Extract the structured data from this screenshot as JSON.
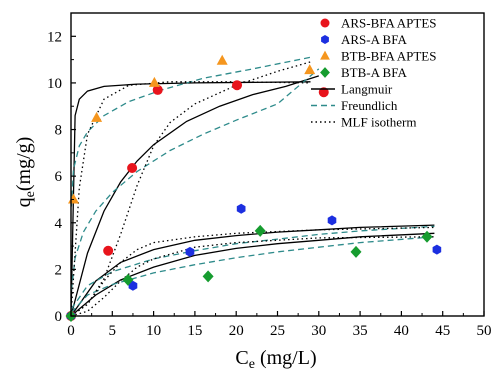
{
  "chart_data": {
    "type": "scatter",
    "title": "",
    "xlabel": "C",
    "xlabel_sub": "e",
    "xlabel_unit": " (mg/L)",
    "ylabel": "q",
    "ylabel_sub": "e",
    "ylabel_unit": "(mg/g)",
    "xlim": [
      0,
      50
    ],
    "ylim": [
      0,
      13
    ],
    "xticks": [
      "0",
      "5",
      "10",
      "15",
      "20",
      "25",
      "30",
      "35",
      "40",
      "45",
      "50"
    ],
    "yticks": [
      "0",
      "2",
      "4",
      "6",
      "8",
      "10",
      "12"
    ],
    "grid": false,
    "legend_position": "top-right",
    "series": [
      {
        "name": "ARS-BFA APTES",
        "marker": "circle",
        "color": "#e8141c",
        "points": [
          [
            0,
            0
          ],
          [
            4.5,
            2.8
          ],
          [
            7.4,
            6.35
          ],
          [
            10.5,
            9.7
          ],
          [
            20.1,
            9.9
          ],
          [
            30.6,
            9.6
          ]
        ]
      },
      {
        "name": "ARS-A BFA",
        "marker": "hexagon",
        "color": "#1c2fe0",
        "points": [
          [
            0,
            0
          ],
          [
            7.5,
            1.3
          ],
          [
            14.4,
            2.75
          ],
          [
            20.6,
            4.6
          ],
          [
            31.6,
            4.1
          ],
          [
            44.3,
            2.85
          ]
        ]
      },
      {
        "name": "BTB-BFA APTES",
        "marker": "triangle",
        "color": "#f5961e",
        "points": [
          [
            0.3,
            5.0
          ],
          [
            3.1,
            8.5
          ],
          [
            10.1,
            10.0
          ],
          [
            18.3,
            10.95
          ],
          [
            28.9,
            10.55
          ]
        ]
      },
      {
        "name": "BTB-A BFA",
        "marker": "diamond",
        "color": "#169c2f",
        "points": [
          [
            0,
            0
          ],
          [
            6.9,
            1.55
          ],
          [
            16.6,
            1.7
          ],
          [
            22.9,
            3.65
          ],
          [
            34.5,
            2.75
          ],
          [
            43.1,
            3.4
          ]
        ]
      }
    ],
    "fit_legend": [
      {
        "name": "Langmuir",
        "style": "solid",
        "color": "#000000"
      },
      {
        "name": "Freundlich",
        "style": "dashed",
        "color": "#2e8b8b"
      },
      {
        "name": "MLF isotherm",
        "style": "dotted",
        "color": "#000000"
      }
    ],
    "fit_curves": [
      {
        "fit": "Langmuir",
        "points": [
          [
            0,
            0
          ],
          [
            0.5,
            8.6
          ],
          [
            1,
            9.3
          ],
          [
            2,
            9.65
          ],
          [
            4,
            9.85
          ],
          [
            8,
            9.95
          ],
          [
            15,
            10.0
          ],
          [
            29,
            10.05
          ]
        ]
      },
      {
        "fit": "Langmuir",
        "points": [
          [
            0,
            0
          ],
          [
            2,
            2.7
          ],
          [
            4,
            4.5
          ],
          [
            6,
            5.75
          ],
          [
            8,
            6.65
          ],
          [
            10,
            7.35
          ],
          [
            14,
            8.35
          ],
          [
            18,
            9.0
          ],
          [
            22,
            9.5
          ],
          [
            26,
            9.85
          ],
          [
            30,
            10.3
          ]
        ]
      },
      {
        "fit": "Langmuir",
        "points": [
          [
            0,
            0
          ],
          [
            3,
            0.9
          ],
          [
            6,
            1.55
          ],
          [
            10,
            2.1
          ],
          [
            15,
            2.6
          ],
          [
            20,
            2.9
          ],
          [
            25,
            3.1
          ],
          [
            30,
            3.25
          ],
          [
            35,
            3.4
          ],
          [
            44,
            3.55
          ]
        ]
      },
      {
        "fit": "Langmuir",
        "points": [
          [
            0,
            0
          ],
          [
            3,
            1.5
          ],
          [
            6,
            2.3
          ],
          [
            10,
            2.85
          ],
          [
            15,
            3.25
          ],
          [
            20,
            3.45
          ],
          [
            25,
            3.6
          ],
          [
            30,
            3.7
          ],
          [
            35,
            3.8
          ],
          [
            44,
            3.9
          ]
        ]
      },
      {
        "fit": "Freundlich",
        "points": [
          [
            0.05,
            4.7
          ],
          [
            0.3,
            6.3
          ],
          [
            1,
            7.3
          ],
          [
            2,
            7.9
          ],
          [
            4,
            8.6
          ],
          [
            7,
            9.2
          ],
          [
            11,
            9.7
          ],
          [
            16,
            10.2
          ],
          [
            22,
            10.6
          ],
          [
            29,
            11.1
          ]
        ]
      },
      {
        "fit": "Freundlich",
        "points": [
          [
            0.05,
            1.1
          ],
          [
            0.5,
            2.5
          ],
          [
            1.5,
            3.6
          ],
          [
            3,
            4.5
          ],
          [
            5,
            5.3
          ],
          [
            8,
            6.2
          ],
          [
            12,
            7.1
          ],
          [
            16,
            7.8
          ],
          [
            20,
            8.4
          ],
          [
            25,
            9.1
          ],
          [
            30,
            10.6
          ]
        ]
      },
      {
        "fit": "Freundlich",
        "points": [
          [
            0.05,
            0.15
          ],
          [
            2,
            0.9
          ],
          [
            5,
            1.35
          ],
          [
            10,
            1.85
          ],
          [
            15,
            2.2
          ],
          [
            20,
            2.5
          ],
          [
            25,
            2.75
          ],
          [
            30,
            2.95
          ],
          [
            35,
            3.15
          ],
          [
            44,
            3.4
          ]
        ]
      },
      {
        "fit": "Freundlich",
        "points": [
          [
            0.05,
            0.3
          ],
          [
            2,
            1.3
          ],
          [
            5,
            1.9
          ],
          [
            10,
            2.45
          ],
          [
            15,
            2.8
          ],
          [
            20,
            3.1
          ],
          [
            25,
            3.3
          ],
          [
            30,
            3.5
          ],
          [
            35,
            3.65
          ],
          [
            44,
            3.85
          ]
        ]
      },
      {
        "fit": "MLF isotherm",
        "points": [
          [
            0,
            0
          ],
          [
            1,
            5.5
          ],
          [
            2,
            7.8
          ],
          [
            4,
            9.3
          ],
          [
            7,
            9.9
          ],
          [
            12,
            10.05
          ],
          [
            20,
            10.05
          ],
          [
            29,
            10.0
          ]
        ]
      },
      {
        "fit": "MLF isotherm",
        "points": [
          [
            0,
            0
          ],
          [
            2,
            0.5
          ],
          [
            4,
            1.6
          ],
          [
            6,
            3.5
          ],
          [
            8,
            5.6
          ],
          [
            10,
            7.3
          ],
          [
            12,
            8.3
          ],
          [
            15,
            9.1
          ],
          [
            20,
            9.9
          ],
          [
            25,
            10.5
          ],
          [
            29,
            10.9
          ]
        ]
      },
      {
        "fit": "MLF isotherm",
        "points": [
          [
            0,
            0
          ],
          [
            2,
            0.2
          ],
          [
            4,
            0.8
          ],
          [
            6,
            1.5
          ],
          [
            8,
            2.1
          ],
          [
            10,
            2.45
          ],
          [
            15,
            2.95
          ],
          [
            20,
            3.15
          ],
          [
            30,
            3.35
          ],
          [
            44,
            3.4
          ]
        ]
      },
      {
        "fit": "MLF isotherm",
        "points": [
          [
            0,
            0
          ],
          [
            2,
            0.5
          ],
          [
            4,
            1.5
          ],
          [
            6,
            2.3
          ],
          [
            8,
            2.85
          ],
          [
            10,
            3.15
          ],
          [
            15,
            3.4
          ],
          [
            20,
            3.55
          ],
          [
            30,
            3.7
          ],
          [
            44,
            3.8
          ]
        ]
      }
    ]
  }
}
